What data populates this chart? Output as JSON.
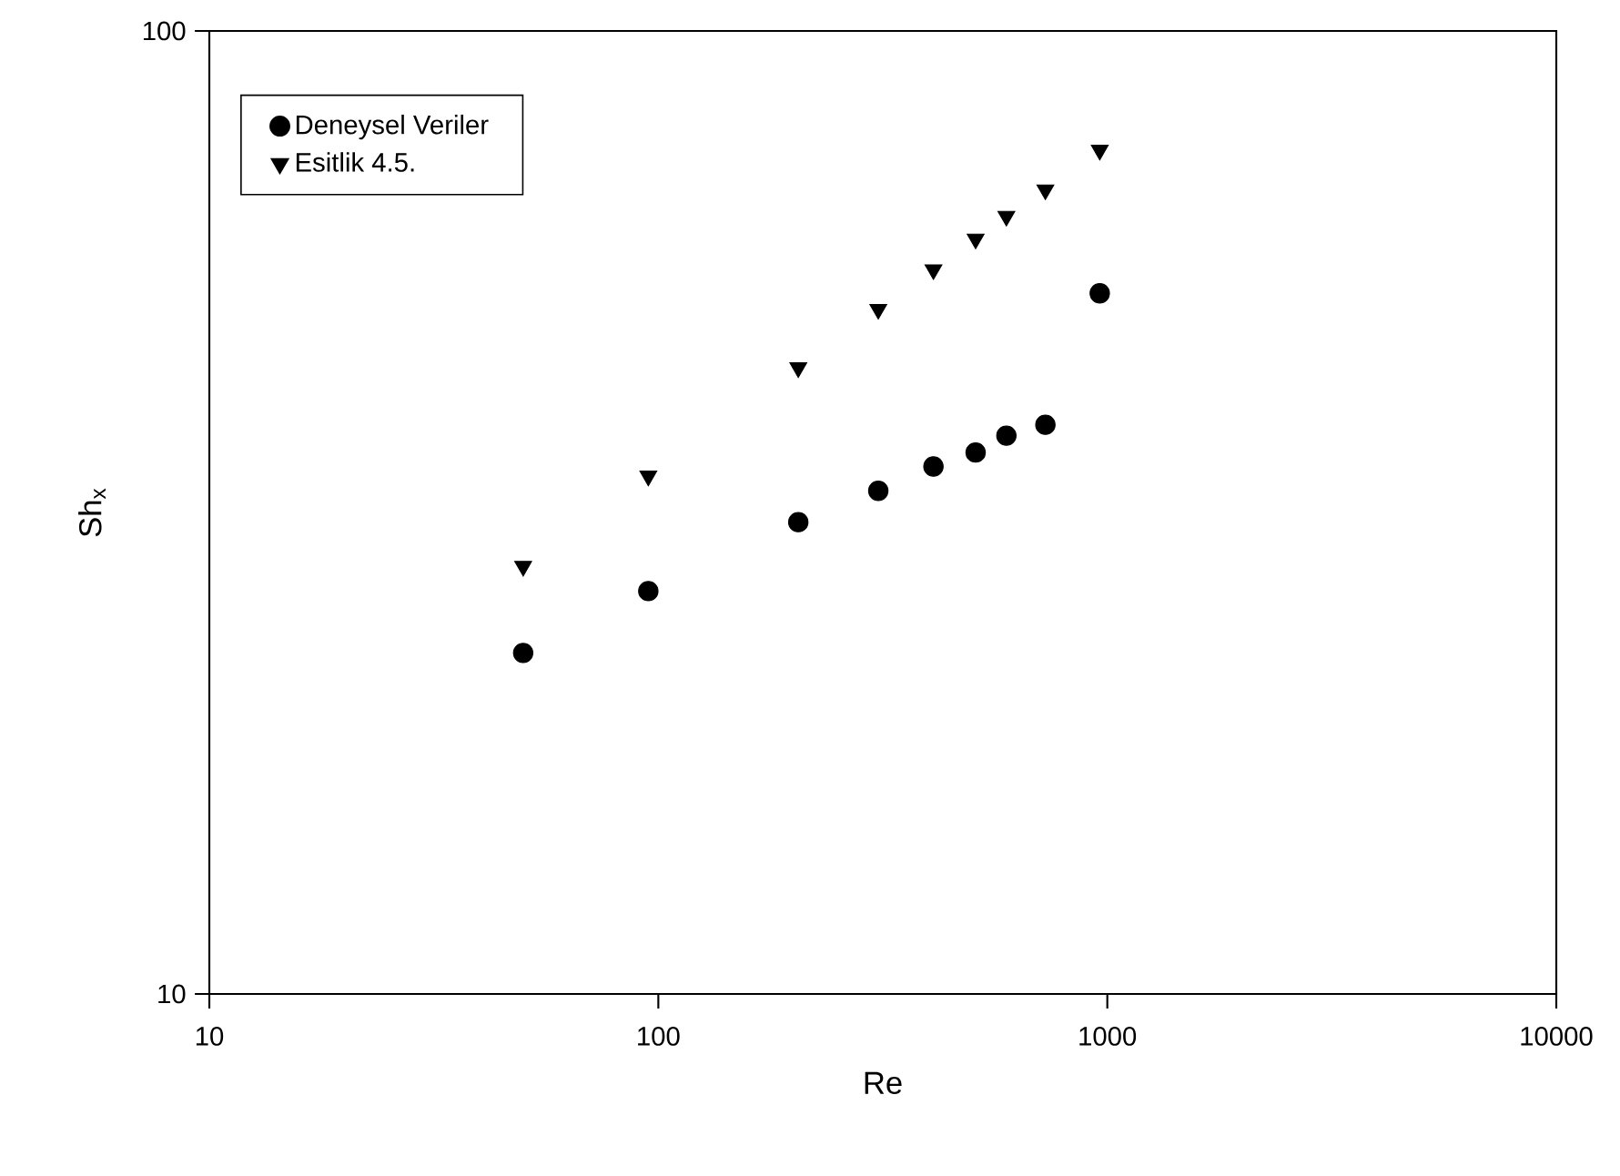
{
  "chart_data": {
    "type": "scatter",
    "xlabel": "Re",
    "ylabel": "Sh$_{x}$",
    "log": "xy",
    "xlim": [
      10,
      10000
    ],
    "xticks": [
      10,
      100,
      1000,
      10000
    ],
    "ylim": [
      10,
      100
    ],
    "yticks": [
      10,
      100
    ],
    "grid": false,
    "legend": "top left",
    "series": [
      {
        "name": "Deneysel Veriler",
        "color": "#000000",
        "marker": "circle",
        "x": [
          50,
          95,
          205,
          309,
          410,
          509,
          596,
          728,
          962
        ],
        "values": [
          22.6,
          26.2,
          30.9,
          33.3,
          35.3,
          36.5,
          38.0,
          39.0,
          53.4
        ]
      },
      {
        "name": "Esitlik 4.5.",
        "color": "#000000",
        "marker": "triangle",
        "x": [
          50,
          95,
          205,
          309,
          410,
          509,
          596,
          728,
          962
        ],
        "values": [
          27.8,
          34.5,
          44.7,
          51.4,
          56.5,
          60.8,
          64.2,
          68.4,
          75.2
        ]
      }
    ]
  }
}
